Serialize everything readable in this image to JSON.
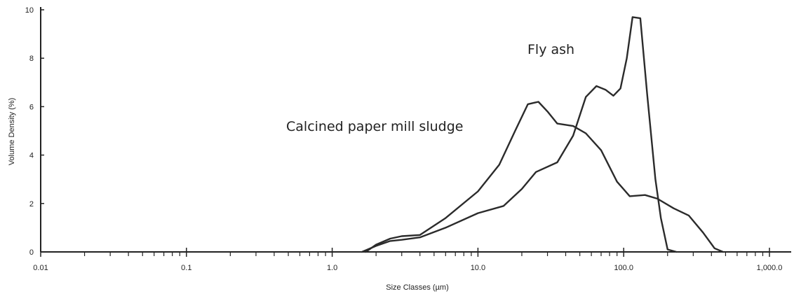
{
  "chart_data": {
    "type": "line",
    "xlabel": "Size Classes (µm)",
    "ylabel": "Volume Density (%)",
    "xscale": "log",
    "xlim": [
      0.01,
      1000
    ],
    "ylim": [
      0,
      10
    ],
    "x_ticks": [
      "0.01",
      "0.1",
      "1.0",
      "10.0",
      "100.0",
      "1,000.0"
    ],
    "y_ticks": [
      "0",
      "2",
      "4",
      "6",
      "8",
      "10"
    ],
    "grid": false,
    "legend": "none",
    "annotations": [
      {
        "text": "Fly ash",
        "series": "fly_ash"
      },
      {
        "text": "Calcined paper mill sludge",
        "series": "paper_sludge"
      }
    ],
    "series": [
      {
        "id": "fly_ash",
        "color": "#2b2b2b",
        "points": [
          [
            1.6,
            0
          ],
          [
            2.0,
            0.25
          ],
          [
            2.5,
            0.45
          ],
          [
            3.0,
            0.5
          ],
          [
            4.0,
            0.6
          ],
          [
            6.0,
            1.0
          ],
          [
            10.0,
            1.6
          ],
          [
            15.0,
            1.9
          ],
          [
            20.0,
            2.6
          ],
          [
            25.0,
            3.3
          ],
          [
            35.0,
            3.7
          ],
          [
            45.0,
            4.8
          ],
          [
            55.0,
            6.4
          ],
          [
            65.0,
            6.85
          ],
          [
            75.0,
            6.7
          ],
          [
            85.0,
            6.45
          ],
          [
            95.0,
            6.75
          ],
          [
            105.0,
            8.0
          ],
          [
            115.0,
            9.7
          ],
          [
            130.0,
            9.65
          ],
          [
            145.0,
            6.5
          ],
          [
            165.0,
            3.0
          ],
          [
            180.0,
            1.4
          ],
          [
            200.0,
            0.1
          ],
          [
            230.0,
            0
          ]
        ]
      },
      {
        "id": "paper_sludge",
        "color": "#2b2b2b",
        "points": [
          [
            1.7,
            0
          ],
          [
            2.0,
            0.3
          ],
          [
            2.5,
            0.55
          ],
          [
            3.0,
            0.65
          ],
          [
            4.0,
            0.7
          ],
          [
            6.0,
            1.4
          ],
          [
            10.0,
            2.5
          ],
          [
            14.0,
            3.6
          ],
          [
            18.0,
            5.0
          ],
          [
            22.0,
            6.1
          ],
          [
            26.0,
            6.2
          ],
          [
            30.0,
            5.8
          ],
          [
            35.0,
            5.3
          ],
          [
            45.0,
            5.2
          ],
          [
            55.0,
            4.9
          ],
          [
            70.0,
            4.2
          ],
          [
            90.0,
            2.9
          ],
          [
            110.0,
            2.3
          ],
          [
            140.0,
            2.35
          ],
          [
            170.0,
            2.2
          ],
          [
            220.0,
            1.8
          ],
          [
            280.0,
            1.5
          ],
          [
            350.0,
            0.8
          ],
          [
            420.0,
            0.15
          ],
          [
            480.0,
            0
          ]
        ]
      }
    ]
  }
}
